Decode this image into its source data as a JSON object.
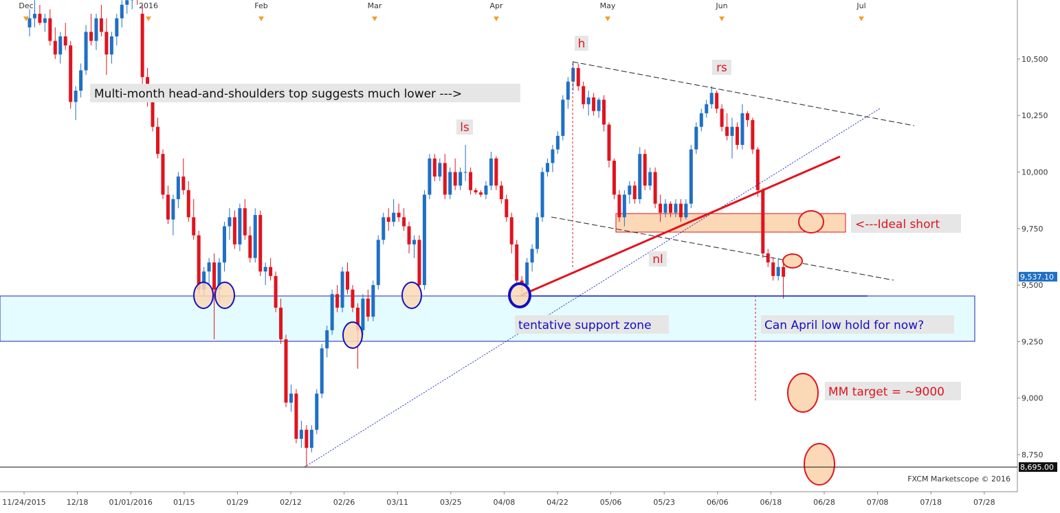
{
  "chart_data": {
    "type": "candlestick",
    "up_color": "#1f6fc5",
    "down_color": "#e0141e",
    "ylim": [
      8589,
      10761
    ],
    "yticks": [
      {
        "value": 8750,
        "label": "8,750"
      },
      {
        "value": 9000,
        "label": "9,000"
      },
      {
        "value": 9250,
        "label": "9,250"
      },
      {
        "value": 9500,
        "label": "9,500"
      },
      {
        "value": 9750,
        "label": "9,750"
      },
      {
        "value": 10000,
        "label": "10,000"
      },
      {
        "value": 10250,
        "label": "10,250"
      },
      {
        "value": 10500,
        "label": "10,500"
      }
    ],
    "xticks": [
      "11/24/2015",
      "12/18",
      "01/01/2016",
      "01/15",
      "01/29",
      "02/12",
      "02/26",
      "03/11",
      "03/25",
      "04/08",
      "04/22",
      "05/06",
      "05/23",
      "06/06",
      "06/18",
      "06/28",
      "07/08",
      "07/18",
      "07/28"
    ],
    "months": [
      "Dec",
      "2016",
      "Feb",
      "Mar",
      "Apr",
      "May",
      "Jun",
      "Jul"
    ],
    "last_price": {
      "value": 9537.1,
      "label": "9,537.10"
    },
    "low_line": {
      "value": 8695,
      "label": "8,695.00"
    },
    "annotations": {
      "headline": "Multi-month head-and-shoulders top suggests much lower --->",
      "ls": "ls",
      "h": "h",
      "rs": "rs",
      "nl": "nl",
      "ideal_short": "<---Ideal short",
      "support": "tentative support zone",
      "question": "Can April low hold for now?",
      "target": "MM target = ~9000"
    },
    "source": "FXCM Marketscope © 2016",
    "candles": [
      [
        10640,
        10720,
        10600,
        10680
      ],
      [
        10680,
        10760,
        10640,
        10700
      ],
      [
        10700,
        10740,
        10650,
        10660
      ],
      [
        10660,
        10700,
        10620,
        10680
      ],
      [
        10680,
        10720,
        10560,
        10580
      ],
      [
        10580,
        10640,
        10500,
        10520
      ],
      [
        10520,
        10620,
        10480,
        10600
      ],
      [
        10600,
        10660,
        10540,
        10560
      ],
      [
        10560,
        10580,
        10280,
        10310
      ],
      [
        10310,
        10380,
        10230,
        10360
      ],
      [
        10360,
        10480,
        10330,
        10450
      ],
      [
        10450,
        10650,
        10430,
        10620
      ],
      [
        10620,
        10700,
        10560,
        10580
      ],
      [
        10580,
        10700,
        10540,
        10680
      ],
      [
        10680,
        10740,
        10600,
        10620
      ],
      [
        10620,
        10680,
        10430,
        10520
      ],
      [
        10520,
        10620,
        10480,
        10600
      ],
      [
        10600,
        10700,
        10560,
        10680
      ],
      [
        10680,
        10760,
        10640,
        10740
      ],
      [
        10740,
        10780,
        10700,
        10760
      ],
      [
        10760,
        10800,
        10720,
        10780
      ],
      [
        10780,
        10800,
        10740,
        10770
      ],
      [
        10700,
        10740,
        10380,
        10420
      ],
      [
        10420,
        10460,
        10290,
        10310
      ],
      [
        10310,
        10350,
        10180,
        10200
      ],
      [
        10200,
        10240,
        10060,
        10080
      ],
      [
        10080,
        10100,
        9880,
        9900
      ],
      [
        9900,
        9940,
        9770,
        9790
      ],
      [
        9790,
        9900,
        9720,
        9880
      ],
      [
        9880,
        10000,
        9840,
        9980
      ],
      [
        9980,
        10060,
        9900,
        9920
      ],
      [
        9920,
        9960,
        9780,
        9800
      ],
      [
        9800,
        9880,
        9700,
        9720
      ],
      [
        9720,
        9740,
        9460,
        9480
      ],
      [
        9480,
        9580,
        9450,
        9560
      ],
      [
        9560,
        9620,
        9500,
        9600
      ],
      [
        9600,
        9640,
        9260,
        9480
      ],
      [
        9480,
        9620,
        9420,
        9600
      ],
      [
        9600,
        9780,
        9560,
        9760
      ],
      [
        9760,
        9840,
        9700,
        9800
      ],
      [
        9800,
        9830,
        9660,
        9680
      ],
      [
        9680,
        9860,
        9650,
        9840
      ],
      [
        9840,
        9880,
        9700,
        9720
      ],
      [
        9720,
        9760,
        9600,
        9620
      ],
      [
        9620,
        9840,
        9600,
        9810
      ],
      [
        9810,
        9830,
        9540,
        9560
      ],
      [
        9560,
        9600,
        9500,
        9580
      ],
      [
        9580,
        9620,
        9520,
        9540
      ],
      [
        9540,
        9560,
        9380,
        9400
      ],
      [
        9400,
        9440,
        9240,
        9260
      ],
      [
        9260,
        9280,
        8960,
        8980
      ],
      [
        8980,
        9060,
        8940,
        9020
      ],
      [
        9020,
        9040,
        8800,
        8820
      ],
      [
        8820,
        8900,
        8780,
        8860
      ],
      [
        8860,
        8880,
        8695,
        8780
      ],
      [
        8780,
        8880,
        8760,
        8860
      ],
      [
        8860,
        9040,
        8840,
        9020
      ],
      [
        9020,
        9240,
        9000,
        9220
      ],
      [
        9220,
        9320,
        9180,
        9300
      ],
      [
        9300,
        9480,
        9280,
        9460
      ],
      [
        9460,
        9500,
        9380,
        9400
      ],
      [
        9400,
        9580,
        9380,
        9560
      ],
      [
        9560,
        9600,
        9460,
        9480
      ],
      [
        9480,
        9500,
        9380,
        9400
      ],
      [
        9400,
        9420,
        9130,
        9300
      ],
      [
        9300,
        9460,
        9280,
        9440
      ],
      [
        9440,
        9480,
        9340,
        9360
      ],
      [
        9360,
        9520,
        9340,
        9500
      ],
      [
        9500,
        9720,
        9480,
        9700
      ],
      [
        9700,
        9820,
        9680,
        9800
      ],
      [
        9800,
        9840,
        9740,
        9780
      ],
      [
        9780,
        9880,
        9760,
        9820
      ],
      [
        9820,
        9860,
        9780,
        9800
      ],
      [
        9800,
        9840,
        9740,
        9760
      ],
      [
        9760,
        9780,
        9640,
        9680
      ],
      [
        9680,
        9720,
        9620,
        9700
      ],
      [
        9700,
        9720,
        9480,
        9500
      ],
      [
        9500,
        9920,
        9480,
        9900
      ],
      [
        9900,
        10080,
        9880,
        10060
      ],
      [
        10060,
        10080,
        9960,
        9980
      ],
      [
        9980,
        10060,
        9960,
        10040
      ],
      [
        10040,
        10080,
        9880,
        9900
      ],
      [
        9900,
        10020,
        9880,
        10000
      ],
      [
        10000,
        10060,
        9920,
        9940
      ],
      [
        9940,
        10020,
        9920,
        10000
      ],
      [
        10000,
        10120,
        9960,
        10000
      ],
      [
        10000,
        10020,
        9900,
        9920
      ],
      [
        9920,
        9930,
        9900,
        9910
      ],
      [
        9910,
        9920,
        9890,
        9900
      ],
      [
        9900,
        9960,
        9880,
        9940
      ],
      [
        9940,
        10090,
        9920,
        10060
      ],
      [
        10060,
        10070,
        9920,
        9940
      ],
      [
        9940,
        9960,
        9860,
        9880
      ],
      [
        9880,
        9900,
        9780,
        9800
      ],
      [
        9800,
        9820,
        9640,
        9680
      ],
      [
        9680,
        9700,
        9500,
        9520
      ],
      [
        9520,
        9540,
        9470,
        9500
      ],
      [
        9500,
        9620,
        9460,
        9600
      ],
      [
        9600,
        9680,
        9560,
        9660
      ],
      [
        9660,
        9820,
        9640,
        9800
      ],
      [
        9800,
        10020,
        9780,
        10000
      ],
      [
        10000,
        10060,
        9980,
        10040
      ],
      [
        10040,
        10120,
        10000,
        10100
      ],
      [
        10100,
        10180,
        10080,
        10160
      ],
      [
        10160,
        10340,
        10140,
        10320
      ],
      [
        10320,
        10420,
        10280,
        10400
      ],
      [
        10400,
        10490,
        10360,
        10460
      ],
      [
        10460,
        10480,
        10360,
        10380
      ],
      [
        10380,
        10400,
        10280,
        10300
      ],
      [
        10300,
        10360,
        10250,
        10330
      ],
      [
        10330,
        10350,
        10250,
        10270
      ],
      [
        10270,
        10330,
        10240,
        10320
      ],
      [
        10320,
        10340,
        10180,
        10210
      ],
      [
        10210,
        10220,
        10020,
        10050
      ],
      [
        10050,
        10060,
        9880,
        9900
      ],
      [
        9900,
        9920,
        9780,
        9800
      ],
      [
        9800,
        9920,
        9760,
        9900
      ],
      [
        9900,
        9960,
        9860,
        9940
      ],
      [
        9940,
        9960,
        9860,
        9880
      ],
      [
        9880,
        10110,
        9860,
        10080
      ],
      [
        10080,
        10100,
        9920,
        9940
      ],
      [
        9940,
        10020,
        9920,
        10000
      ],
      [
        10000,
        10020,
        9840,
        9860
      ],
      [
        9860,
        9900,
        9780,
        9820
      ],
      [
        9820,
        9880,
        9800,
        9860
      ],
      [
        9860,
        9870,
        9800,
        9820
      ],
      [
        9820,
        9880,
        9800,
        9860
      ],
      [
        9860,
        9880,
        9780,
        9800
      ],
      [
        9800,
        9880,
        9790,
        9860
      ],
      [
        9860,
        10120,
        9840,
        10100
      ],
      [
        10100,
        10220,
        10080,
        10200
      ],
      [
        10200,
        10280,
        10180,
        10260
      ],
      [
        10260,
        10320,
        10240,
        10300
      ],
      [
        10300,
        10380,
        10280,
        10350
      ],
      [
        10350,
        10360,
        10260,
        10280
      ],
      [
        10280,
        10300,
        10180,
        10200
      ],
      [
        10200,
        10260,
        10140,
        10160
      ],
      [
        10160,
        10240,
        10060,
        10200
      ],
      [
        10200,
        10220,
        10100,
        10120
      ],
      [
        10120,
        10300,
        10100,
        10260
      ],
      [
        10260,
        10270,
        10200,
        10230
      ],
      [
        10230,
        10240,
        10080,
        10100
      ],
      [
        10100,
        10110,
        9890,
        9920
      ],
      [
        9920,
        9930,
        9620,
        9640
      ],
      [
        9640,
        9660,
        9580,
        9600
      ],
      [
        9600,
        9620,
        9520,
        9540
      ],
      [
        9540,
        9620,
        9520,
        9580
      ],
      [
        9580,
        9600,
        9440,
        9537.1
      ]
    ]
  }
}
